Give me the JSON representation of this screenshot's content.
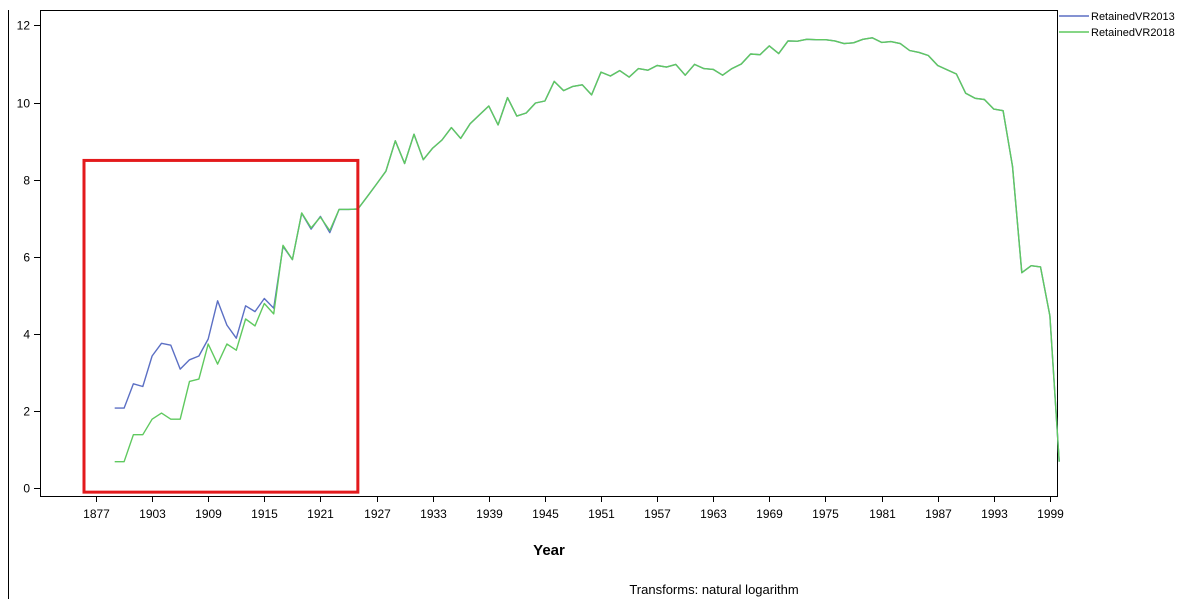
{
  "chart_data": {
    "type": "line",
    "xlabel": "Year",
    "ylabel": "",
    "note": "Transforms: natural logarithm",
    "ylim": [
      -0.2,
      12.4
    ],
    "y_ticks": [
      0,
      2,
      4,
      6,
      8,
      10,
      12
    ],
    "x_tick_labels": [
      "1877",
      "1903",
      "1909",
      "1915",
      "1921",
      "1927",
      "1933",
      "1939",
      "1945",
      "1951",
      "1957",
      "1963",
      "1969",
      "1975",
      "1981",
      "1987",
      "1993",
      "1999"
    ],
    "legend_position": "top-right",
    "highlight_box": {
      "x_from": "1877",
      "x_to": "1925",
      "y_from": -0.1,
      "y_to": 8.5,
      "color": "#e31a1c"
    },
    "series": [
      {
        "name": "RetainedVR2013",
        "color": "#5b6fc4",
        "x": [
          1899,
          1900,
          1901,
          1902,
          1903,
          1904,
          1905,
          1906,
          1907,
          1908,
          1909,
          1910,
          1911,
          1912,
          1913,
          1914,
          1915,
          1916,
          1917,
          1918,
          1919,
          1920,
          1921,
          1922,
          1923,
          1924,
          1925,
          1926,
          1927,
          1928,
          1929,
          1930,
          1931,
          1932,
          1933,
          1934,
          1935,
          1936,
          1937,
          1938,
          1939,
          1940,
          1941,
          1942,
          1943,
          1944,
          1945,
          1946,
          1947,
          1948,
          1949,
          1950,
          1951,
          1952,
          1953,
          1954,
          1955,
          1956,
          1957,
          1958,
          1959,
          1960,
          1961,
          1962,
          1963,
          1964,
          1965,
          1966,
          1967,
          1968,
          1969,
          1970,
          1971,
          1972,
          1973,
          1974,
          1975,
          1976,
          1977,
          1978,
          1979,
          1980,
          1981,
          1982,
          1983,
          1984,
          1985,
          1986,
          1987,
          1988,
          1989,
          1990,
          1991,
          1992,
          1993,
          1994,
          1995,
          1996,
          1997,
          1998,
          1999,
          2000
        ],
        "values": [
          2.08,
          2.08,
          2.71,
          2.64,
          3.43,
          3.76,
          3.71,
          3.09,
          3.33,
          3.43,
          3.87,
          4.86,
          4.23,
          3.89,
          4.73,
          4.58,
          4.92,
          4.67,
          6.27,
          5.93,
          7.13,
          6.72,
          7.05,
          6.63,
          7.23,
          7.23,
          7.24,
          7.56,
          7.89,
          8.22,
          9.01,
          8.42,
          9.18,
          8.52,
          8.82,
          9.03,
          9.35,
          9.07,
          9.45,
          9.68,
          9.91,
          9.42,
          10.13,
          9.65,
          9.73,
          9.99,
          10.04,
          10.55,
          10.31,
          10.42,
          10.46,
          10.2,
          10.79,
          10.69,
          10.83,
          10.66,
          10.88,
          10.84,
          10.96,
          10.92,
          10.99,
          10.71,
          10.99,
          10.88,
          10.86,
          10.71,
          10.88,
          11.0,
          11.26,
          11.24,
          11.47,
          11.27,
          11.6,
          11.59,
          11.64,
          11.63,
          11.63,
          11.6,
          11.53,
          11.55,
          11.64,
          11.68,
          11.56,
          11.58,
          11.53,
          11.35,
          11.3,
          11.22,
          10.96,
          10.85,
          10.74,
          10.24,
          10.11,
          10.08,
          9.83,
          9.79,
          8.35,
          5.59,
          5.77,
          5.74,
          4.47,
          0.69
        ]
      },
      {
        "name": "RetainedVR2018",
        "color": "#5fc95f",
        "x": [
          1899,
          1900,
          1901,
          1902,
          1903,
          1904,
          1905,
          1906,
          1907,
          1908,
          1909,
          1910,
          1911,
          1912,
          1913,
          1914,
          1915,
          1916,
          1917,
          1918,
          1919,
          1920,
          1921,
          1922,
          1923,
          1924,
          1925,
          1926,
          1927,
          1928,
          1929,
          1930,
          1931,
          1932,
          1933,
          1934,
          1935,
          1936,
          1937,
          1938,
          1939,
          1940,
          1941,
          1942,
          1943,
          1944,
          1945,
          1946,
          1947,
          1948,
          1949,
          1950,
          1951,
          1952,
          1953,
          1954,
          1955,
          1956,
          1957,
          1958,
          1959,
          1960,
          1961,
          1962,
          1963,
          1964,
          1965,
          1966,
          1967,
          1968,
          1969,
          1970,
          1971,
          1972,
          1973,
          1974,
          1975,
          1976,
          1977,
          1978,
          1979,
          1980,
          1981,
          1982,
          1983,
          1984,
          1985,
          1986,
          1987,
          1988,
          1989,
          1990,
          1991,
          1992,
          1993,
          1994,
          1995,
          1996,
          1997,
          1998,
          1999,
          2000
        ],
        "values": [
          0.69,
          0.69,
          1.39,
          1.39,
          1.79,
          1.95,
          1.79,
          1.79,
          2.77,
          2.83,
          3.74,
          3.22,
          3.74,
          3.58,
          4.39,
          4.21,
          4.79,
          4.52,
          6.3,
          5.93,
          7.14,
          6.75,
          7.03,
          6.68,
          7.23,
          7.23,
          7.24,
          7.56,
          7.89,
          8.22,
          9.01,
          8.42,
          9.18,
          8.52,
          8.82,
          9.03,
          9.35,
          9.07,
          9.45,
          9.68,
          9.91,
          9.42,
          10.13,
          9.65,
          9.73,
          9.99,
          10.04,
          10.55,
          10.31,
          10.42,
          10.46,
          10.2,
          10.79,
          10.69,
          10.83,
          10.66,
          10.88,
          10.84,
          10.96,
          10.92,
          10.99,
          10.71,
          10.99,
          10.88,
          10.86,
          10.71,
          10.88,
          11.0,
          11.26,
          11.24,
          11.47,
          11.27,
          11.6,
          11.59,
          11.64,
          11.63,
          11.63,
          11.6,
          11.53,
          11.55,
          11.64,
          11.68,
          11.56,
          11.58,
          11.53,
          11.35,
          11.3,
          11.22,
          10.96,
          10.85,
          10.74,
          10.24,
          10.11,
          10.08,
          9.83,
          9.79,
          8.35,
          5.59,
          5.77,
          5.74,
          4.47,
          0.69
        ]
      }
    ]
  }
}
